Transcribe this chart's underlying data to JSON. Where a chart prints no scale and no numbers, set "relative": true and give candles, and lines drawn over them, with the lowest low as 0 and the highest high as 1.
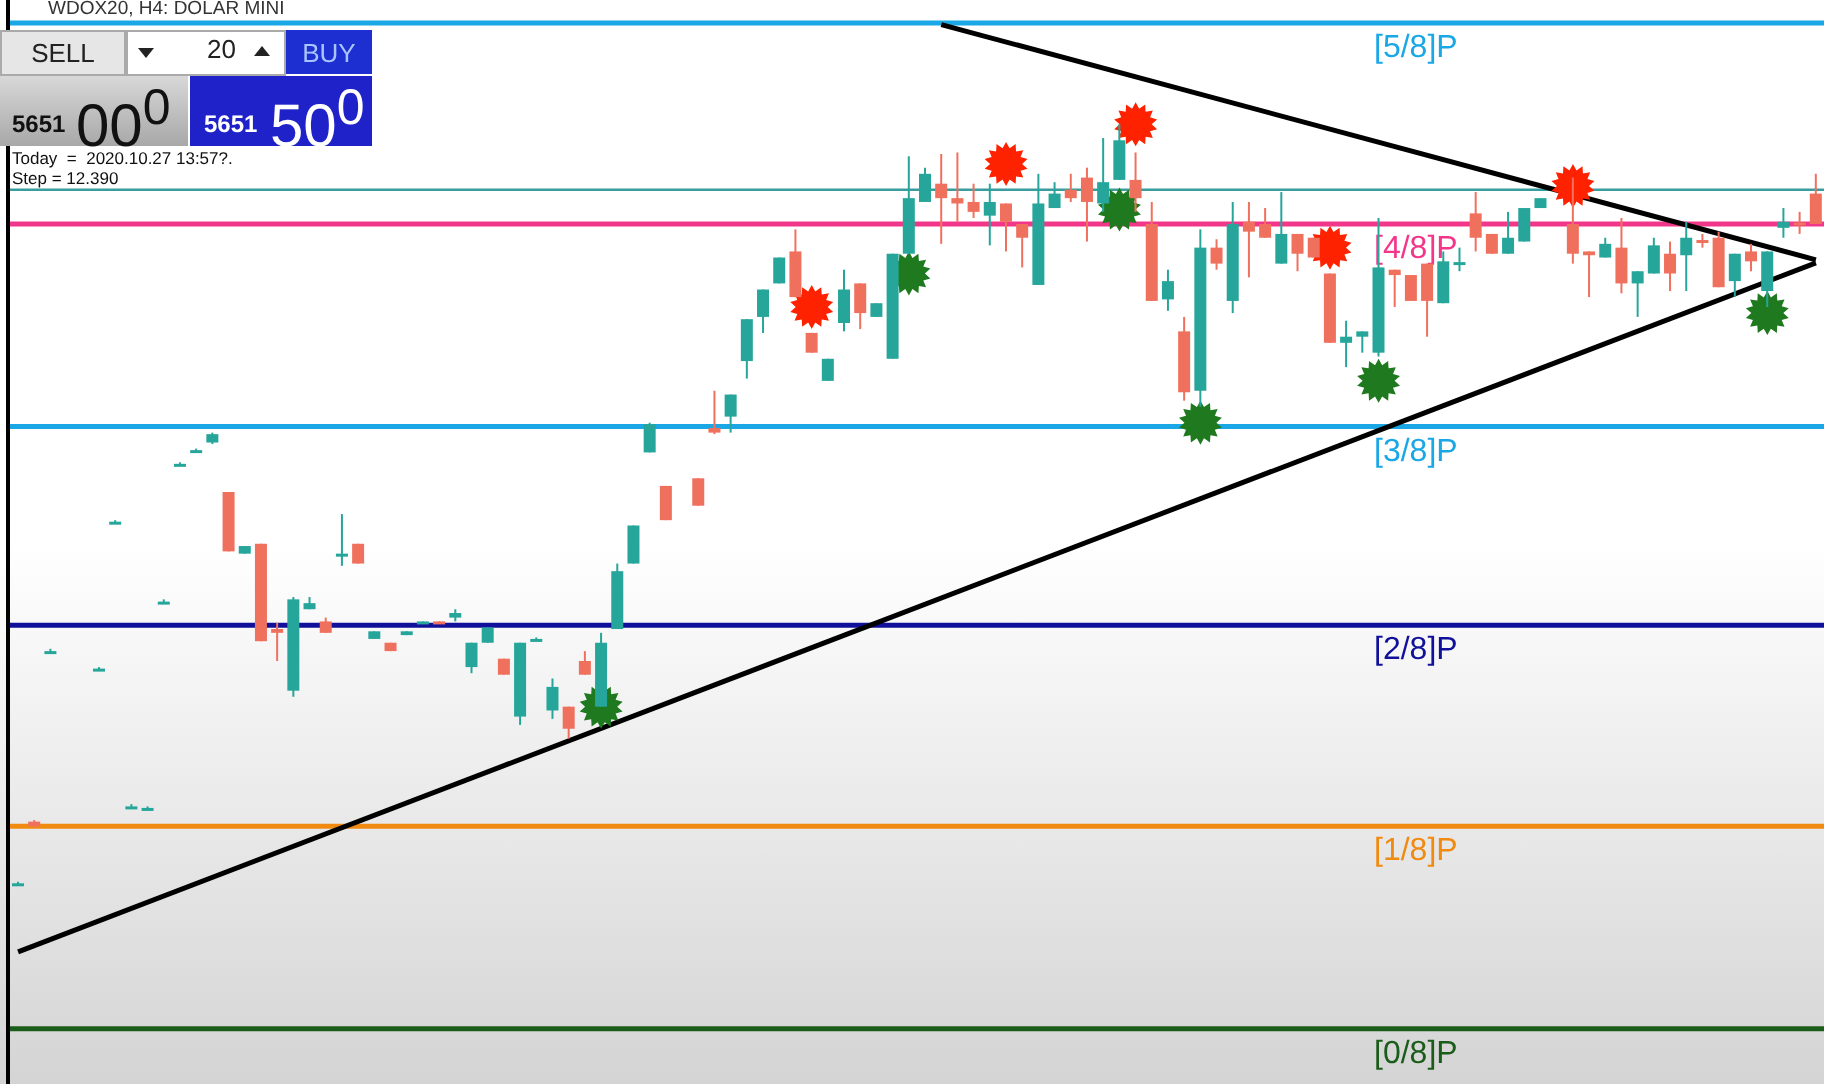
{
  "chart_data": {
    "type": "candlestick",
    "title": "WDOX20, H4: DOLAR MINI",
    "relative": true,
    "tick_labels": false,
    "annotations": [
      "SELL",
      "20",
      "BUY",
      "5651",
      "00$^{0}$",
      "5651",
      "50$^{0}$",
      "Today  =  2020.10.27 13:57?.",
      "Step = 12.390"
    ],
    "categories": [
      null,
      null,
      null,
      null,
      null,
      null,
      null,
      null,
      null,
      null,
      null,
      null,
      null,
      null,
      null,
      null,
      null,
      null,
      null,
      null,
      null,
      null,
      null,
      null,
      null,
      null,
      null,
      null,
      null,
      null,
      null,
      null,
      null,
      null,
      null,
      null,
      null,
      null,
      null,
      null,
      null,
      null,
      null,
      null,
      null,
      null,
      null,
      null,
      null,
      null,
      null,
      null,
      null,
      null,
      null,
      null,
      null,
      null,
      null,
      null,
      null,
      null,
      null,
      null,
      null,
      null,
      null,
      null,
      null,
      null,
      null,
      null,
      null,
      null,
      null,
      null,
      null,
      null,
      null,
      null,
      null,
      null,
      null,
      null,
      null,
      null,
      null,
      null,
      null,
      null,
      null,
      null,
      null,
      null,
      null,
      null,
      null,
      null,
      null,
      null,
      null,
      null,
      null,
      null,
      null,
      null,
      null,
      null,
      null,
      null,
      null,
      null
    ],
    "ohlc": [
      [
        0.003,
        0.005,
        0,
        0.003
      ],
      [
        0.084,
        0.086,
        0.076,
        0.078
      ],
      [
        0.308,
        0.311,
        0.305,
        0.308
      ],
      null,
      null,
      [
        0.285,
        0.287,
        0.282,
        0.285
      ],
      [
        0.478,
        0.48,
        0.475,
        0.478
      ],
      [
        0.104,
        0.107,
        0.102,
        0.104
      ],
      [
        0.102,
        0.104,
        0.099,
        0.102
      ],
      [
        0.373,
        0.376,
        0.371,
        0.373
      ],
      [
        0.554,
        0.556,
        0.551,
        0.554
      ],
      [
        0.572,
        0.574,
        0.569,
        0.572
      ],
      [
        0.582,
        0.595,
        0.58,
        0.593
      ],
      [
        0.517,
        0.517,
        0.439,
        0.439
      ],
      [
        0.436,
        0.446,
        0.436,
        0.446
      ],
      [
        0.449,
        0.449,
        0.321,
        0.321
      ],
      [
        0.337,
        0.345,
        0.295,
        0.332
      ],
      [
        0.256,
        0.379,
        0.248,
        0.376
      ],
      [
        0.363,
        0.379,
        0.363,
        0.371
      ],
      [
        0.347,
        0.352,
        0.332,
        0.332
      ],
      [
        0.433,
        0.488,
        0.42,
        0.436
      ],
      [
        0.449,
        0.449,
        0.423,
        0.423
      ],
      [
        0.324,
        0.334,
        0.324,
        0.334
      ],
      [
        0.319,
        0.319,
        0.308,
        0.308
      ],
      [
        0.329,
        0.334,
        0.329,
        0.334
      ],
      [
        0.345,
        0.347,
        0.345,
        0.347
      ],
      [
        0.347,
        0.347,
        0.345,
        0.345
      ],
      [
        0.352,
        0.363,
        0.347,
        0.358
      ],
      [
        0.287,
        0.319,
        0.279,
        0.319
      ],
      [
        0.319,
        0.339,
        0.319,
        0.339
      ],
      [
        0.298,
        0.298,
        0.277,
        0.277
      ],
      [
        0.222,
        0.319,
        0.211,
        0.319
      ],
      [
        0.324,
        0.326,
        0.321,
        0.324
      ],
      [
        0.23,
        0.272,
        0.219,
        0.261
      ],
      [
        0.235,
        0.235,
        0.193,
        0.206
      ],
      [
        0.295,
        0.308,
        0.277,
        0.277
      ],
      [
        0.235,
        0.332,
        0.235,
        0.319
      ],
      [
        0.337,
        0.423,
        0.337,
        0.413
      ],
      [
        0.423,
        0.473,
        0.423,
        0.473
      ],
      [
        0.569,
        0.608,
        0.569,
        0.606
      ],
      [
        0.525,
        0.525,
        0.48,
        0.48
      ],
      null,
      [
        0.535,
        0.535,
        0.499,
        0.499
      ],
      [
        0.601,
        0.65,
        0.593,
        0.595
      ],
      [
        0.616,
        0.645,
        0.595,
        0.645
      ],
      [
        0.689,
        0.744,
        0.666,
        0.744
      ],
      [
        0.747,
        0.783,
        0.726,
        0.783
      ],
      [
        0.791,
        0.825,
        0.791,
        0.825
      ],
      [
        0.833,
        0.862,
        0.773,
        0.773
      ],
      [
        0.726,
        0.726,
        0.7,
        0.7
      ],
      [
        0.663,
        0.692,
        0.663,
        0.692
      ],
      [
        0.739,
        0.809,
        0.728,
        0.783
      ],
      [
        0.791,
        0.791,
        0.731,
        0.752
      ],
      [
        0.747,
        0.765,
        0.747,
        0.765
      ],
      [
        0.692,
        0.83,
        0.692,
        0.83
      ],
      [
        0.83,
        0.958,
        0.83,
        0.903
      ],
      [
        0.898,
        0.943,
        0.898,
        0.935
      ],
      [
        0.922,
        0.961,
        0.843,
        0.903
      ],
      [
        0.903,
        0.963,
        0.872,
        0.896
      ],
      [
        0.898,
        0.922,
        0.877,
        0.885
      ],
      [
        0.88,
        0.922,
        0.841,
        0.898
      ],
      [
        0.896,
        0.896,
        0.833,
        0.872
      ],
      [
        0.869,
        0.869,
        0.812,
        0.851
      ],
      [
        0.789,
        0.935,
        0.789,
        0.896
      ],
      [
        0.89,
        0.924,
        0.89,
        0.909
      ],
      [
        0.914,
        0.935,
        0.898,
        0.903
      ],
      [
        0.93,
        0.943,
        0.846,
        0.898
      ],
      [
        0.896,
        0.982,
        0.885,
        0.924
      ],
      [
        0.927,
        1,
        0.927,
        0.979
      ],
      [
        0.927,
        0.963,
        0.885,
        0.903
      ],
      [
        0.869,
        0.898,
        0.768,
        0.768
      ],
      [
        0.77,
        0.809,
        0.755,
        0.794
      ],
      [
        0.728,
        0.747,
        0.637,
        0.648
      ],
      [
        0.65,
        0.862,
        0.629,
        0.838
      ],
      [
        0.838,
        0.849,
        0.809,
        0.817
      ],
      [
        0.768,
        0.898,
        0.752,
        0.869
      ],
      [
        0.872,
        0.898,
        0.799,
        0.859
      ],
      [
        0.869,
        0.89,
        0.851,
        0.851
      ],
      [
        0.817,
        0.911,
        0.817,
        0.856
      ],
      [
        0.856,
        0.856,
        0.807,
        0.83
      ],
      [
        0.851,
        0.851,
        0.825,
        0.825
      ],
      [
        0.804,
        0.804,
        0.713,
        0.713
      ],
      [
        0.713,
        0.742,
        0.681,
        0.721
      ],
      [
        0.721,
        0.728,
        0.7,
        0.728
      ],
      [
        0.7,
        0.877,
        0.695,
        0.812
      ],
      [
        0.809,
        0.809,
        0.76,
        0.802
      ],
      [
        0.802,
        0.802,
        0.768,
        0.768
      ],
      [
        0.817,
        0.817,
        0.721,
        0.768
      ],
      [
        0.765,
        0.833,
        0.765,
        0.82
      ],
      [
        0.819,
        0.838,
        0.807,
        0.819
      ],
      [
        0.883,
        0.911,
        0.833,
        0.851
      ],
      [
        0.856,
        0.856,
        0.83,
        0.83
      ],
      [
        0.83,
        0.885,
        0.83,
        0.851
      ],
      [
        0.846,
        0.89,
        0.846,
        0.89
      ],
      [
        0.89,
        0.903,
        0.89,
        0.903
      ],
      null,
      [
        0.869,
        0.93,
        0.817,
        0.83
      ],
      [
        0.833,
        0.833,
        0.773,
        0.828
      ],
      [
        0.825,
        0.851,
        0.825,
        0.843
      ],
      [
        0.838,
        0.877,
        0.778,
        0.791
      ],
      [
        0.791,
        0.807,
        0.747,
        0.807
      ],
      [
        0.804,
        0.851,
        0.804,
        0.841
      ],
      [
        0.83,
        0.846,
        0.781,
        0.804
      ],
      [
        0.828,
        0.872,
        0.781,
        0.851
      ],
      [
        0.848,
        0.856,
        0.838,
        0.845
      ],
      [
        0.851,
        0.859,
        0.786,
        0.786
      ],
      [
        0.794,
        0.83,
        0.773,
        0.83
      ],
      [
        0.833,
        0.843,
        0.807,
        0.82
      ],
      [
        0.781,
        0.833,
        0.76,
        0.833
      ],
      [
        0.864,
        0.89,
        0.851,
        0.872
      ],
      [
        0.871,
        0.885,
        0.856,
        0.868
      ],
      [
        0.909,
        0.935,
        0.869,
        0.869
      ]
    ],
    "colors": [
      "#26a69a",
      "#f0705e",
      "#26a69a",
      null,
      null,
      "#26a69a",
      "#26a69a",
      "#26a69a",
      "#26a69a",
      "#26a69a",
      "#26a69a",
      "#26a69a",
      "#26a69a",
      "#f0705e",
      "#26a69a",
      "#f0705e",
      "#f0705e",
      "#26a69a",
      "#26a69a",
      "#f0705e",
      "#26a69a",
      "#f0705e",
      "#26a69a",
      "#f0705e",
      "#26a69a",
      "#26a69a",
      "#f0705e",
      "#26a69a",
      "#26a69a",
      "#26a69a",
      "#f0705e",
      "#26a69a",
      "#26a69a",
      "#26a69a",
      "#f0705e",
      "#f0705e",
      "#26a69a",
      "#26a69a",
      "#26a69a",
      "#26a69a",
      "#f0705e",
      null,
      "#f0705e",
      "#f0705e",
      "#26a69a",
      "#26a69a",
      "#26a69a",
      "#26a69a",
      "#f0705e",
      "#f0705e",
      "#26a69a",
      "#26a69a",
      "#f0705e",
      "#26a69a",
      "#26a69a",
      "#26a69a",
      "#26a69a",
      "#f0705e",
      "#f0705e",
      "#f0705e",
      "#26a69a",
      "#f0705e",
      "#f0705e",
      "#26a69a",
      "#26a69a",
      "#f0705e",
      "#f0705e",
      "#26a69a",
      "#26a69a",
      "#f0705e",
      "#f0705e",
      "#26a69a",
      "#f0705e",
      "#26a69a",
      "#f0705e",
      "#26a69a",
      "#f0705e",
      "#f0705e",
      "#26a69a",
      "#f0705e",
      "#f0705e",
      "#f0705e",
      "#26a69a",
      "#26a69a",
      "#26a69a",
      "#f0705e",
      "#f0705e",
      "#f0705e",
      "#26a69a",
      "#26a69a",
      "#f0705e",
      "#f0705e",
      "#26a69a",
      "#26a69a",
      "#26a69a",
      null,
      "#f0705e",
      "#f0705e",
      "#26a69a",
      "#f0705e",
      "#26a69a",
      "#26a69a",
      "#f0705e",
      "#26a69a",
      "#f0705e",
      "#f0705e",
      "#26a69a",
      "#f0705e",
      "#26a69a",
      "#26a69a",
      "#f0705e",
      "#f0705e"
    ],
    "series": [
      {
        "type": "line",
        "color": "#000000",
        "marker": "none",
        "values": [
          -0.087,
          null,
          null,
          null,
          null,
          null,
          null,
          null,
          null,
          null,
          null,
          null,
          null,
          null,
          null,
          null,
          null,
          null,
          null,
          null,
          null,
          null,
          null,
          null,
          null,
          null,
          null,
          null,
          null,
          null,
          null,
          null,
          null,
          null,
          null,
          null,
          null,
          null,
          null,
          null,
          null,
          null,
          null,
          null,
          null,
          null,
          null,
          null,
          null,
          null,
          null,
          null,
          null,
          null,
          null,
          null,
          null,
          null,
          null,
          null,
          null,
          null,
          null,
          null,
          null,
          null,
          null,
          null,
          null,
          null,
          null,
          null,
          null,
          null,
          null,
          null,
          null,
          null,
          null,
          null,
          null,
          null,
          null,
          null,
          null,
          null,
          null,
          null,
          null,
          null,
          null,
          null,
          null,
          null,
          null,
          null,
          null,
          null,
          null,
          null,
          null,
          null,
          null,
          null,
          null,
          null,
          null,
          null,
          null,
          null,
          null,
          0.818
        ]
      },
      {
        "type": "line",
        "color": "#000000",
        "marker": "none",
        "values": [
          null,
          null,
          null,
          null,
          null,
          null,
          null,
          null,
          null,
          null,
          null,
          null,
          null,
          null,
          null,
          null,
          null,
          null,
          null,
          null,
          null,
          null,
          null,
          null,
          null,
          null,
          null,
          null,
          null,
          null,
          null,
          null,
          null,
          null,
          null,
          null,
          null,
          null,
          null,
          null,
          null,
          null,
          null,
          null,
          null,
          null,
          null,
          null,
          null,
          null,
          null,
          null,
          null,
          null,
          null,
          null,
          null,
          1.131,
          null,
          null,
          null,
          null,
          null,
          null,
          null,
          null,
          null,
          null,
          null,
          null,
          null,
          null,
          null,
          null,
          null,
          null,
          null,
          null,
          null,
          null,
          null,
          null,
          null,
          null,
          null,
          null,
          null,
          null,
          null,
          null,
          null,
          null,
          null,
          null,
          null,
          null,
          null,
          null,
          null,
          null,
          null,
          null,
          null,
          null,
          null,
          null,
          null,
          null,
          null,
          null,
          null,
          0.822
        ]
      },
      {
        "type": "scatter",
        "color": "#1f7a1f",
        "marker": "star",
        "values": [
          null,
          null,
          null,
          null,
          null,
          null,
          null,
          null,
          null,
          null,
          null,
          null,
          null,
          null,
          null,
          null,
          null,
          null,
          null,
          null,
          null,
          null,
          null,
          null,
          null,
          null,
          null,
          null,
          null,
          null,
          null,
          null,
          null,
          null,
          null,
          null,
          0.235,
          null,
          null,
          null,
          null,
          null,
          null,
          null,
          null,
          null,
          null,
          null,
          null,
          null,
          null,
          null,
          null,
          null,
          null,
          0.804,
          null,
          null,
          null,
          null,
          null,
          null,
          null,
          null,
          null,
          null,
          null,
          null,
          0.888,
          null,
          null,
          null,
          null,
          0.608,
          null,
          null,
          null,
          null,
          null,
          null,
          null,
          null,
          null,
          null,
          0.663,
          null,
          null,
          null,
          null,
          null,
          null,
          null,
          null,
          null,
          null,
          null,
          null,
          null,
          null,
          null,
          null,
          null,
          null,
          null,
          null,
          null,
          null,
          null,
          0.752,
          null,
          null,
          null
        ]
      },
      {
        "type": "scatter",
        "color": "#ff2200",
        "marker": "star",
        "values": [
          null,
          null,
          null,
          null,
          null,
          null,
          null,
          null,
          null,
          null,
          null,
          null,
          null,
          null,
          null,
          null,
          null,
          null,
          null,
          null,
          null,
          null,
          null,
          null,
          null,
          null,
          null,
          null,
          null,
          null,
          null,
          null,
          null,
          null,
          null,
          null,
          null,
          null,
          null,
          null,
          null,
          null,
          null,
          null,
          null,
          null,
          null,
          null,
          null,
          0.76,
          null,
          null,
          null,
          null,
          null,
          null,
          null,
          null,
          null,
          null,
          null,
          0.948,
          null,
          null,
          null,
          null,
          null,
          null,
          null,
          1.0,
          null,
          null,
          null,
          null,
          null,
          null,
          null,
          null,
          null,
          null,
          null,
          0.838,
          null,
          null,
          null,
          null,
          null,
          null,
          null,
          null,
          null,
          null,
          null,
          null,
          null,
          null,
          0.919,
          null,
          null,
          null,
          null,
          null,
          null,
          null,
          null,
          null,
          null,
          null,
          null,
          null,
          null,
          null
        ]
      }
    ],
    "ref_lines": [
      {
        "axis": "y",
        "value": 1.133,
        "label": "[5/8]P",
        "color": "#1aa7e6"
      },
      {
        "axis": "y",
        "value": 0.914,
        "label": null,
        "color": "#3a9d9d"
      },
      {
        "axis": "y",
        "value": 0.869,
        "label": "[4/8]P",
        "color": "#f2378a"
      },
      {
        "axis": "y",
        "value": 0.603,
        "label": "[3/8]P",
        "color": "#1aa7e6"
      },
      {
        "axis": "y",
        "value": 0.342,
        "label": "[2/8]P",
        "color": "#10109a"
      },
      {
        "axis": "y",
        "value": 0.078,
        "label": "[1/8]P",
        "color": "#f08a10"
      },
      {
        "axis": "y",
        "value": -0.188,
        "label": "[0/8]P",
        "color": "#1a5c1a"
      }
    ]
  }
}
